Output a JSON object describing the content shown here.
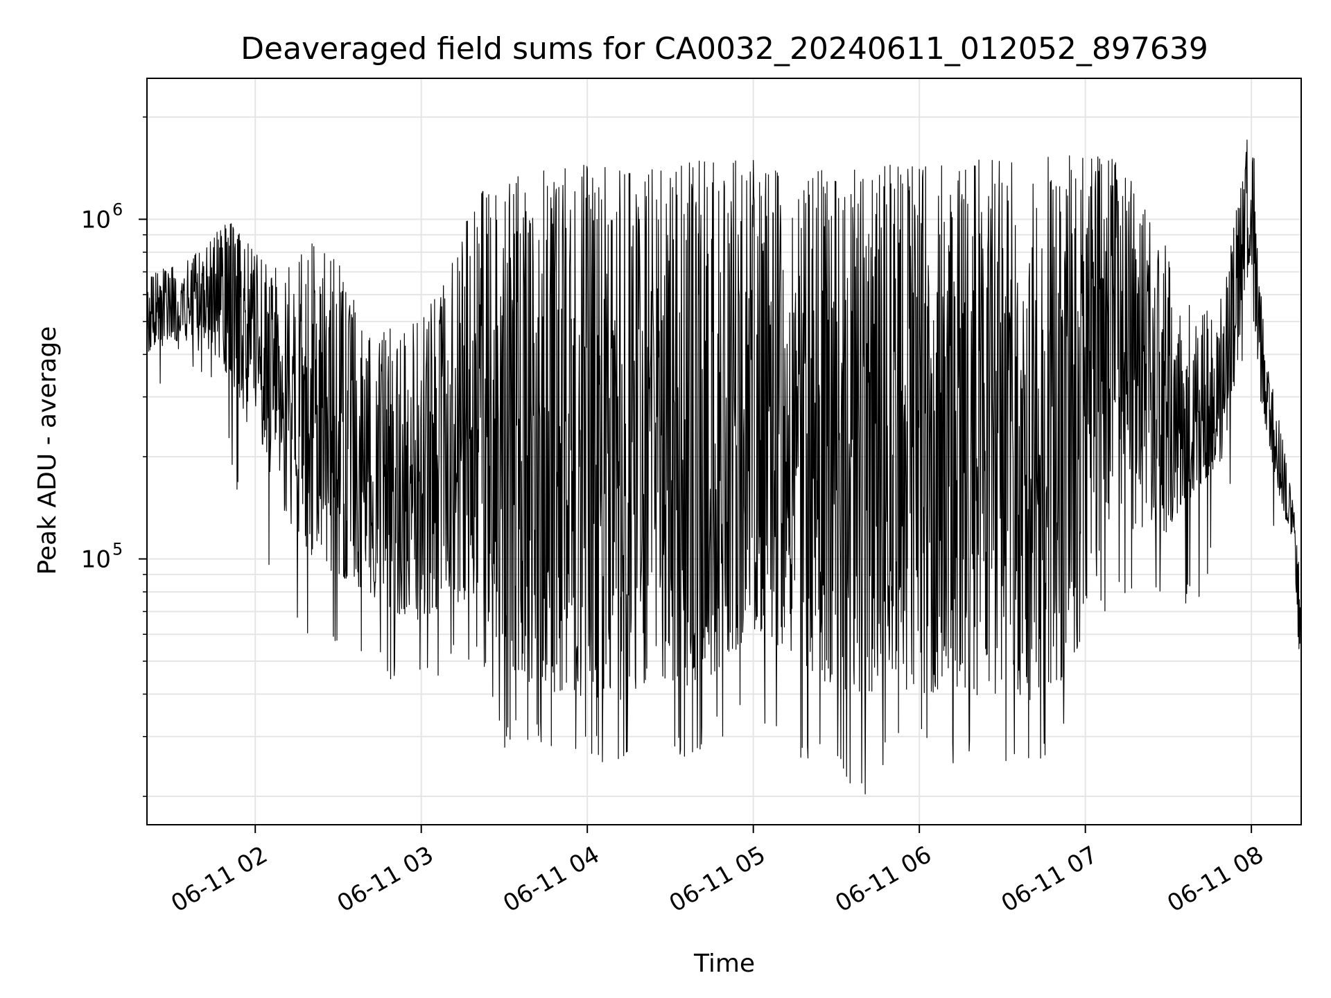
{
  "chart_data": {
    "type": "line",
    "title": "Deaveraged field sums for CA0032_20240611_012052_897639",
    "xlabel": "Time",
    "ylabel": "Peak ADU - average",
    "yscale": "log",
    "grid": true,
    "line_color": "#000000",
    "grid_color": "#e5e5e5",
    "xlim": [
      "2024-06-11 01:20:52",
      "2024-06-11 08:18:00"
    ],
    "ylim": [
      16500,
      2600000
    ],
    "x_ticks": [
      {
        "value": "2024-06-11 02:00",
        "label": "06-11 02"
      },
      {
        "value": "2024-06-11 03:00",
        "label": "06-11 03"
      },
      {
        "value": "2024-06-11 04:00",
        "label": "06-11 04"
      },
      {
        "value": "2024-06-11 05:00",
        "label": "06-11 05"
      },
      {
        "value": "2024-06-11 06:00",
        "label": "06-11 06"
      },
      {
        "value": "2024-06-11 07:00",
        "label": "06-11 07"
      },
      {
        "value": "2024-06-11 08:00",
        "label": "06-11 08"
      }
    ],
    "y_ticks": [
      {
        "value": 100000,
        "base": "10",
        "exp": "5"
      },
      {
        "value": 1000000,
        "base": "10",
        "exp": "6"
      }
    ],
    "series": [
      {
        "x": [
          "2024-06-11 01:21",
          "2024-06-11 01:30",
          "2024-06-11 01:40",
          "2024-06-11 01:50",
          "2024-06-11 02:00",
          "2024-06-11 02:10",
          "2024-06-11 02:20",
          "2024-06-11 02:30",
          "2024-06-11 02:40",
          "2024-06-11 02:50",
          "2024-06-11 03:00",
          "2024-06-11 03:10",
          "2024-06-11 03:20",
          "2024-06-11 03:30",
          "2024-06-11 03:40",
          "2024-06-11 03:50",
          "2024-06-11 04:00",
          "2024-06-11 04:10",
          "2024-06-11 04:20",
          "2024-06-11 04:30",
          "2024-06-11 04:40",
          "2024-06-11 04:50",
          "2024-06-11 05:00",
          "2024-06-11 05:10",
          "2024-06-11 05:20",
          "2024-06-11 05:30",
          "2024-06-11 05:40",
          "2024-06-11 05:50",
          "2024-06-11 06:00",
          "2024-06-11 06:10",
          "2024-06-11 06:20",
          "2024-06-11 06:30",
          "2024-06-11 06:40",
          "2024-06-11 06:50",
          "2024-06-11 07:00",
          "2024-06-11 07:10",
          "2024-06-11 07:20",
          "2024-06-11 07:30",
          "2024-06-11 07:40",
          "2024-06-11 07:50",
          "2024-06-11 08:00",
          "2024-06-11 08:05",
          "2024-06-11 08:10",
          "2024-06-11 08:15",
          "2024-06-11 08:18"
        ],
        "low": [
          400000,
          430000,
          450000,
          350000,
          220000,
          140000,
          100000,
          90000,
          80000,
          70000,
          65000,
          70000,
          80000,
          50000,
          42000,
          40000,
          38000,
          38000,
          40000,
          42000,
          42000,
          50000,
          60000,
          55000,
          45000,
          42000,
          40000,
          40000,
          40000,
          40000,
          40000,
          38000,
          38000,
          40000,
          60000,
          150000,
          110000,
          120000,
          160000,
          200000,
          700000,
          250000,
          150000,
          110000,
          40000
        ],
        "high": [
          680000,
          750000,
          800000,
          1000000,
          800000,
          700000,
          850000,
          800000,
          450000,
          480000,
          500000,
          700000,
          1200000,
          1300000,
          1400000,
          1400000,
          1450000,
          1450000,
          1400000,
          1400000,
          1500000,
          1500000,
          1500000,
          1400000,
          1400000,
          1400000,
          1400000,
          1450000,
          1450000,
          1450000,
          1500000,
          1500000,
          1500000,
          1550000,
          1550000,
          1500000,
          1200000,
          800000,
          500000,
          600000,
          2100000,
          400000,
          260000,
          150000,
          80000
        ],
        "min_spike": [
          320000,
          400000,
          400000,
          230000,
          105000,
          88000,
          60000,
          55000,
          58000,
          45000,
          50000,
          50000,
          55000,
          30000,
          32000,
          31000,
          28000,
          27000,
          28000,
          27000,
          29000,
          33000,
          35000,
          29000,
          28000,
          28000,
          20000,
          30000,
          30000,
          28000,
          27000,
          25000,
          24000,
          30000,
          55000,
          90000,
          70000,
          80000,
          80000,
          120000,
          600000,
          220000,
          100000,
          90000,
          40000
        ]
      }
    ]
  }
}
